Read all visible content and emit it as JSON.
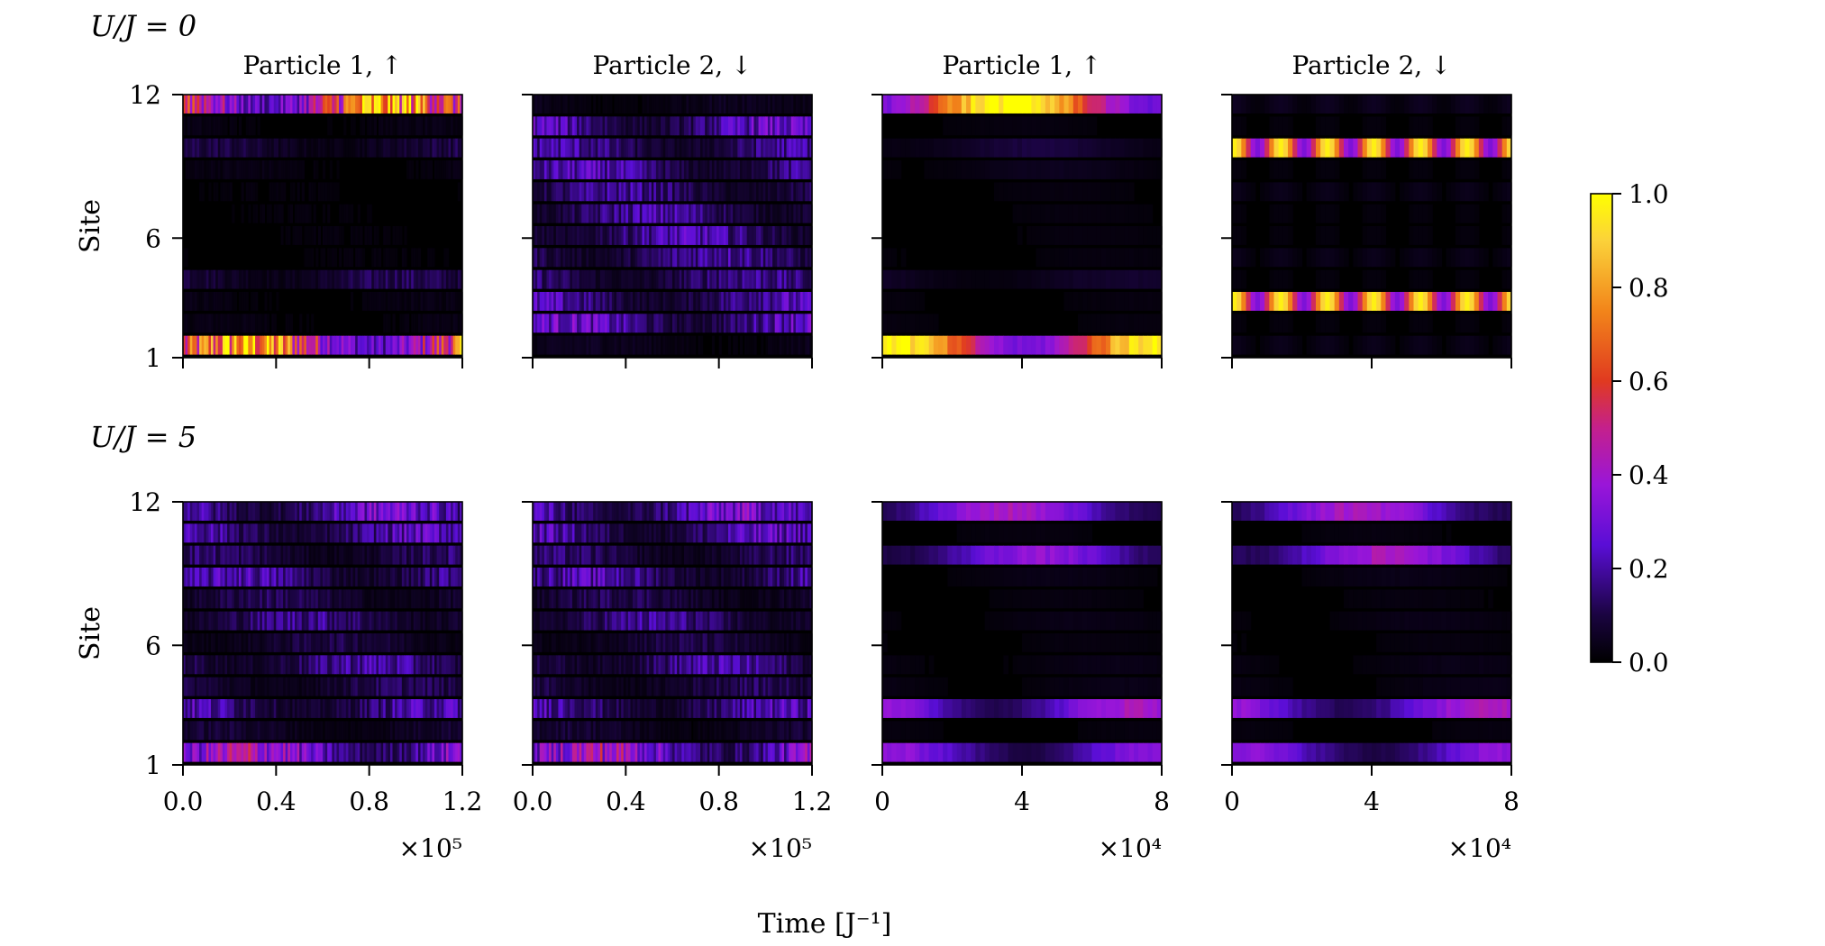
{
  "chart_data": {
    "type": "heatmap",
    "colormap": "gnuplot-style black-purple-red-orange-yellow",
    "ylabel": "Site",
    "xlabel": "Time [J⁻¹]",
    "y_ticks": [
      "1",
      "6",
      "12"
    ],
    "y_range": [
      1,
      12
    ],
    "colorbar": {
      "range": [
        0.0,
        1.0
      ],
      "ticks": [
        "1.0",
        "0.8",
        "0.6",
        "0.4",
        "0.2",
        "0.0"
      ]
    },
    "rows": [
      {
        "label": "U/J = 0",
        "panels": [
          {
            "title": "Particle 1, ↑",
            "x_range": [
              0.0,
              1.2
            ],
            "x_ticks": [
              "0.0",
              "0.4",
              "0.8",
              "1.2"
            ],
            "x_multiplier": "×10⁵",
            "pattern": "fast",
            "site_levels": [
              0.8,
              0.03,
              0.03,
              0.12,
              0.02,
              0.02,
              0.02,
              0.02,
              0.03,
              0.1,
              0.03,
              0.8
            ]
          },
          {
            "title": "Particle 2, ↓",
            "x_range": [
              0.0,
              1.2
            ],
            "x_ticks": [
              "0.0",
              "0.4",
              "0.8",
              "1.2"
            ],
            "x_multiplier": "×10⁵",
            "pattern": "fast",
            "site_levels": [
              0.05,
              0.28,
              0.22,
              0.18,
              0.2,
              0.22,
              0.2,
              0.18,
              0.22,
              0.2,
              0.26,
              0.05
            ]
          },
          {
            "title": "Particle 1, ↑",
            "x_range": [
              0,
              8
            ],
            "x_ticks": [
              "0",
              "4",
              "8"
            ],
            "x_multiplier": "×10⁴",
            "pattern": "slow",
            "site_levels": [
              0.85,
              0.02,
              0.02,
              0.06,
              0.02,
              0.02,
              0.02,
              0.02,
              0.04,
              0.08,
              0.02,
              0.85
            ]
          },
          {
            "title": "Particle 2, ↓",
            "x_range": [
              0,
              8
            ],
            "x_ticks": [
              "0",
              "4",
              "8"
            ],
            "x_multiplier": "×10⁴",
            "pattern": "oscillate",
            "site_levels": [
              0.04,
              0.02,
              0.92,
              0.02,
              0.04,
              0.02,
              0.02,
              0.04,
              0.02,
              0.92,
              0.02,
              0.05
            ]
          }
        ]
      },
      {
        "label": "U/J = 5",
        "panels": [
          {
            "title": "",
            "x_range": [
              0.0,
              1.2
            ],
            "x_ticks": [
              "0.0",
              "0.4",
              "0.8",
              "1.2"
            ],
            "x_multiplier": "×10⁵",
            "pattern": "fast",
            "site_levels": [
              0.42,
              0.08,
              0.22,
              0.12,
              0.2,
              0.1,
              0.18,
              0.12,
              0.22,
              0.14,
              0.24,
              0.3
            ]
          },
          {
            "title": "",
            "x_range": [
              0.0,
              1.2
            ],
            "x_ticks": [
              "0.0",
              "0.4",
              "0.8",
              "1.2"
            ],
            "x_multiplier": "×10⁵",
            "pattern": "fast",
            "site_levels": [
              0.42,
              0.08,
              0.22,
              0.12,
              0.2,
              0.1,
              0.18,
              0.12,
              0.22,
              0.14,
              0.24,
              0.3
            ]
          },
          {
            "title": "",
            "x_range": [
              0,
              8
            ],
            "x_ticks": [
              "0",
              "4",
              "8"
            ],
            "x_multiplier": "×10⁴",
            "pattern": "slow",
            "site_levels": [
              0.3,
              0.02,
              0.35,
              0.03,
              0.03,
              0.02,
              0.03,
              0.02,
              0.03,
              0.3,
              0.02,
              0.35
            ]
          },
          {
            "title": "",
            "x_range": [
              0,
              8
            ],
            "x_ticks": [
              "0",
              "4",
              "8"
            ],
            "x_multiplier": "×10⁴",
            "pattern": "slow",
            "site_levels": [
              0.3,
              0.02,
              0.35,
              0.03,
              0.03,
              0.02,
              0.03,
              0.02,
              0.03,
              0.35,
              0.02,
              0.35
            ]
          }
        ]
      }
    ]
  }
}
